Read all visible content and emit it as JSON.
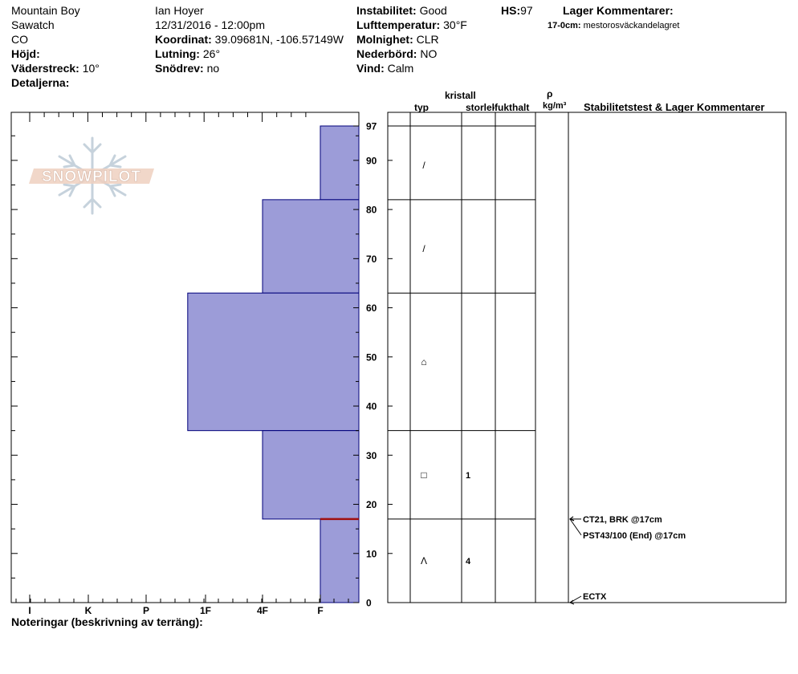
{
  "header": {
    "location": "Mountain Boy",
    "range": "Sawatch",
    "state": "CO",
    "elevation_label": "Höjd:",
    "aspect_label": "Väderstreck:",
    "aspect_value": "10°",
    "details_label": "Detaljerna:",
    "observer": "Ian Hoyer",
    "datetime": "12/31/2016 - 12:00pm",
    "coord_label": "Koordinat:",
    "coord_value": "39.09681N, -106.57149W",
    "slope_label": "Lutning:",
    "slope_value": "26°",
    "drift_label": "Snödrev:",
    "drift_value": "no",
    "stability_label": "Instabilitet:",
    "stability_value": "Good",
    "airtemp_label": "Lufttemperatur:",
    "airtemp_value": "30°F",
    "sky_label": "Molnighet:",
    "sky_value": "CLR",
    "precip_label": "Nederbörd:",
    "precip_value": "NO",
    "wind_label": "Vind:",
    "wind_value": "Calm",
    "hs_label": "HS:",
    "hs_value": "97",
    "layer_comments_title": "Lager Kommentarer:",
    "layer_comment_range": "17-0cm:",
    "layer_comment_text": "mestorosväckandelagret"
  },
  "logo_text": "SNOWPILOT",
  "columns": {
    "crystal": "kristall",
    "type": "typ",
    "size": "storlek",
    "moisture": "fukthalt",
    "rho": "ρ",
    "density_unit": "kg/m³",
    "tests": "Stabilitetstest & Lager Kommentarer"
  },
  "footer": {
    "notes_label": "Noteringar (beskrivning av terräng):"
  },
  "colors": {
    "fill": "#9c9cd8",
    "stroke": "#00007a",
    "weak_layer": "#a01010"
  },
  "chart_data": {
    "type": "bar",
    "orientation": "horizontal",
    "x_categories": [
      "I",
      "K",
      "P",
      "1F",
      "4F",
      "F"
    ],
    "y_ticks": [
      0,
      10,
      20,
      30,
      40,
      50,
      60,
      70,
      80,
      90,
      97
    ],
    "ylim": [
      0,
      97
    ],
    "layers": [
      {
        "bottom": 82,
        "top": 97,
        "hardness": "F"
      },
      {
        "bottom": 63,
        "top": 82,
        "hardness": "4F"
      },
      {
        "bottom": 35,
        "top": 63,
        "hardness": "1F+"
      },
      {
        "bottom": 17,
        "top": 35,
        "hardness": "4F"
      },
      {
        "bottom": 0,
        "top": 17,
        "hardness": "F"
      }
    ],
    "hardness_values": {
      "I": 6,
      "K": 5,
      "P": 4,
      "1F+": 3.3,
      "1F": 3,
      "4F": 2,
      "F": 1
    },
    "weak_layer_depth": 17,
    "crystals": [
      {
        "depth": 89,
        "symbol": "/",
        "size": ""
      },
      {
        "depth": 72,
        "symbol": "/",
        "size": ""
      },
      {
        "depth": 49,
        "symbol": "⌂",
        "size": ""
      },
      {
        "depth": 26,
        "symbol": "□",
        "size": "1"
      },
      {
        "depth": 8.5,
        "symbol": "Λ",
        "size": "4"
      }
    ],
    "tests": [
      {
        "depth": 17,
        "label": "CT21, BRK @17cm"
      },
      {
        "depth": 17,
        "label": "PST43/100 (End) @17cm"
      },
      {
        "depth": 0,
        "label": "ECTX"
      }
    ]
  }
}
